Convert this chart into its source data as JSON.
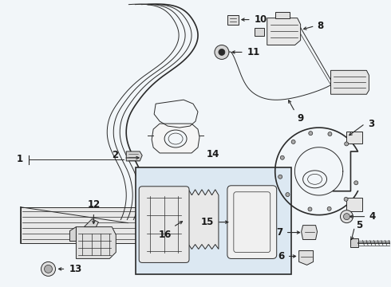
{
  "bg_color": "#f2f6f9",
  "line_color": "#2a2a2a",
  "text_color": "#1a1a1a",
  "box_bg": "#dce8f2",
  "fig_width": 4.9,
  "fig_height": 3.6,
  "dpi": 100
}
